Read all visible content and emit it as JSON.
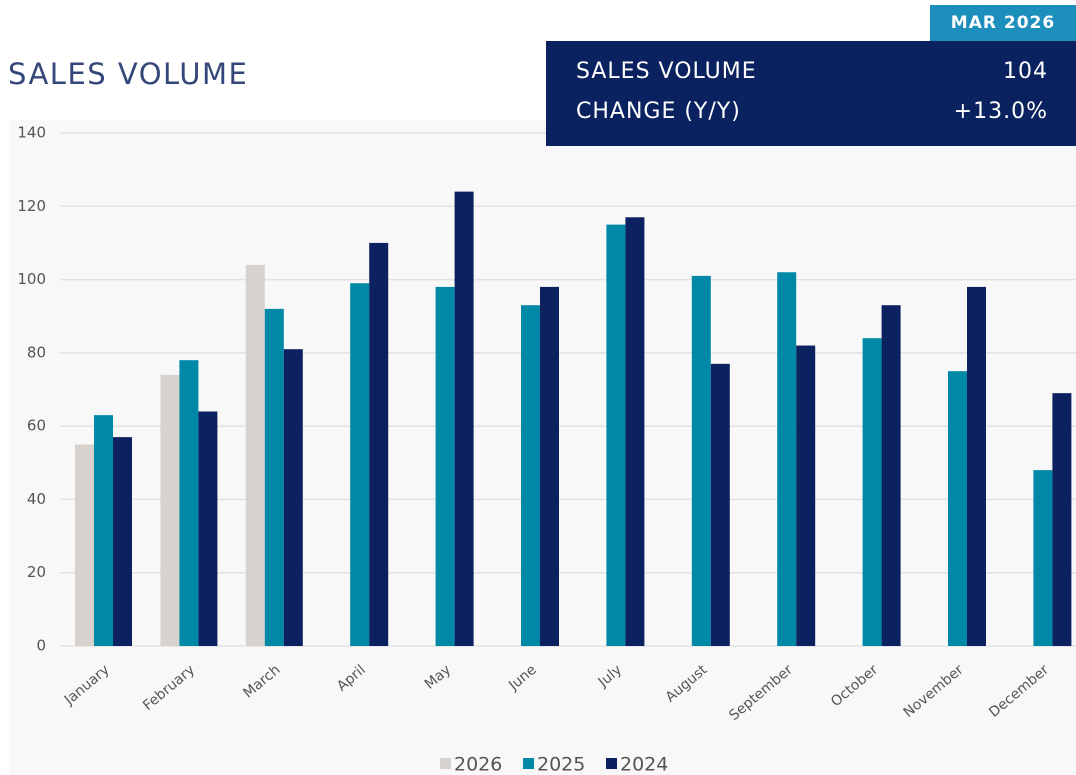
{
  "chart_data": {
    "type": "bar",
    "title": "SALES VOLUME",
    "categories": [
      "January",
      "February",
      "March",
      "April",
      "May",
      "June",
      "July",
      "August",
      "September",
      "October",
      "November",
      "December"
    ],
    "series": [
      {
        "name": "2026",
        "color": "#d8d2ce",
        "values": [
          55,
          74,
          104,
          null,
          null,
          null,
          null,
          null,
          null,
          null,
          null,
          null
        ]
      },
      {
        "name": "2025",
        "color": "#0088a7",
        "values": [
          63,
          78,
          92,
          99,
          98,
          93,
          115,
          101,
          102,
          84,
          75,
          48
        ]
      },
      {
        "name": "2024",
        "color": "#0c2160",
        "values": [
          57,
          64,
          81,
          110,
          124,
          98,
          117,
          77,
          82,
          93,
          98,
          69
        ]
      }
    ],
    "ylim": [
      0,
      140
    ],
    "yticks": [
      0,
      20,
      40,
      60,
      80,
      100,
      120,
      140
    ],
    "grid": true,
    "legend": "bottom"
  },
  "summary": {
    "badge": "MAR 2026",
    "rows": [
      {
        "label": "SALES VOLUME",
        "value": "104"
      },
      {
        "label": "CHANGE (Y/Y)",
        "value": "+13.0%"
      }
    ]
  }
}
